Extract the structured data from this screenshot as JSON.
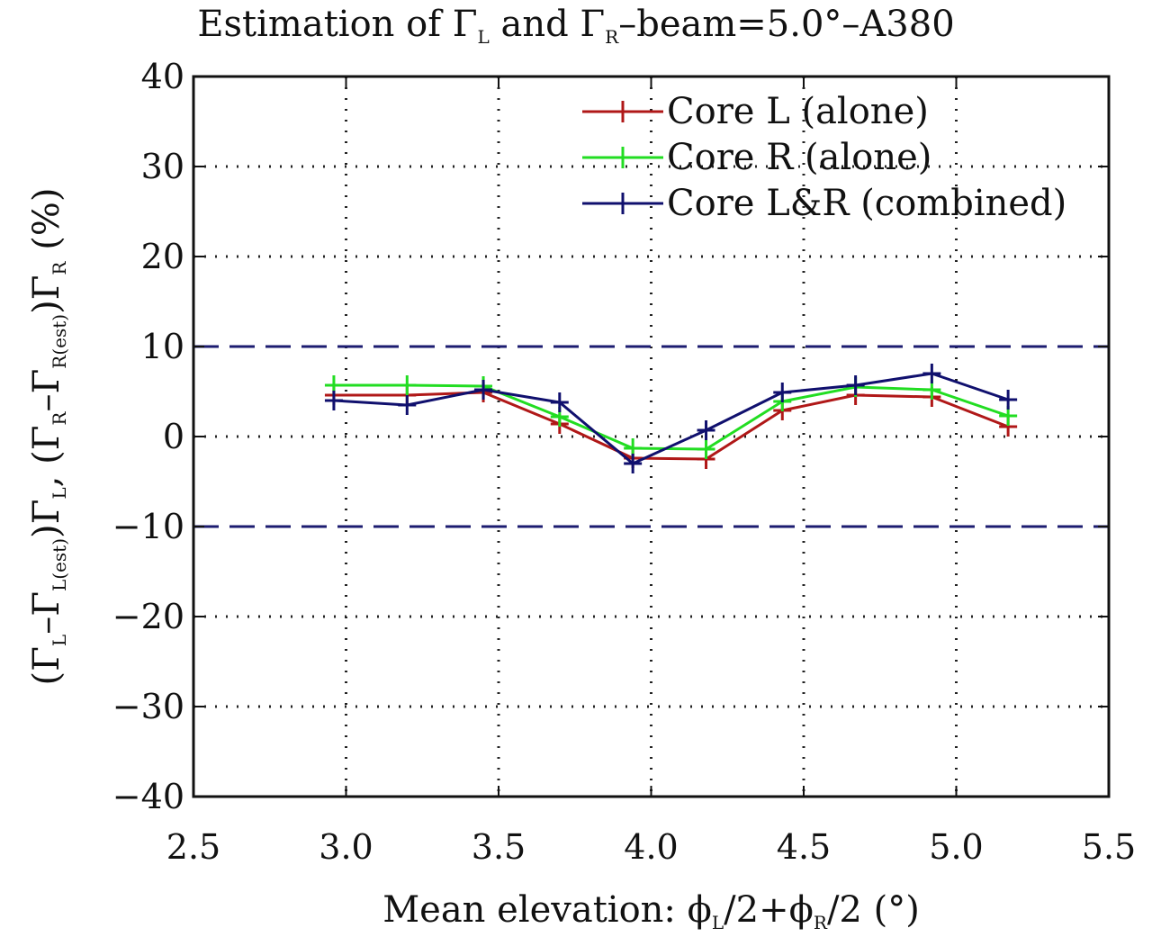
{
  "chart_data": {
    "type": "line",
    "title_parts": {
      "pre": "Estimation of Γ",
      "sub1": "L",
      "mid": " and Γ",
      "sub2": "R",
      "post": "–beam=5.0°–A380"
    },
    "title": "Estimation of ΓL and ΓR–beam=5.0°–A380",
    "xlabel": "Mean elevation: ϕL/2+ϕR/2 (°)",
    "xlabel_parts": {
      "pre": "Mean elevation: ϕ",
      "sub1": "L",
      "mid": "/2+ϕ",
      "sub2": "R",
      "post": "/2 (°)"
    },
    "ylabel": "(ΓL–ΓL(est))ΓL, (ΓR–ΓR(est))ΓR (%)",
    "ylabel_parts": {
      "a": "(Γ",
      "s1": "L",
      "b": "–Γ",
      "s2": "L(est)",
      "c": ")Γ",
      "s3": "L",
      "d": ", (Γ",
      "s4": "R",
      "e": "–Γ",
      "s5": "R(est)",
      "f": ")Γ",
      "s6": "R",
      "g": " (%)"
    },
    "xlim": [
      2.5,
      5.5
    ],
    "ylim": [
      -40,
      40
    ],
    "x_ticks": [
      "2.5",
      "3.0",
      "3.5",
      "4.0",
      "4.5",
      "5.0",
      "5.5"
    ],
    "y_ticks": [
      "40",
      "30",
      "20",
      "10",
      "0",
      "−10",
      "−20",
      "−30",
      "−40"
    ],
    "grid": true,
    "legend_position": "top-right",
    "reference_lines": [
      10,
      -10
    ],
    "reference_color": "#1c1c70",
    "x": [
      2.96,
      3.2,
      3.45,
      3.7,
      3.94,
      4.18,
      4.43,
      4.67,
      4.92,
      5.17
    ],
    "series": [
      {
        "name": "Core L (alone)",
        "color": "#b01818",
        "values": [
          4.6,
          4.6,
          4.9,
          1.4,
          -2.4,
          -2.5,
          2.9,
          4.6,
          4.4,
          1.1
        ]
      },
      {
        "name": "Core R (alone)",
        "color": "#22dd22",
        "values": [
          5.7,
          5.7,
          5.6,
          2.2,
          -1.3,
          -1.4,
          3.9,
          5.5,
          5.2,
          2.3
        ]
      },
      {
        "name": "Core L&R (combined)",
        "color": "#10106e",
        "values": [
          4.0,
          3.5,
          5.2,
          3.8,
          -3.0,
          0.7,
          4.9,
          5.7,
          7.0,
          4.1
        ]
      }
    ]
  }
}
